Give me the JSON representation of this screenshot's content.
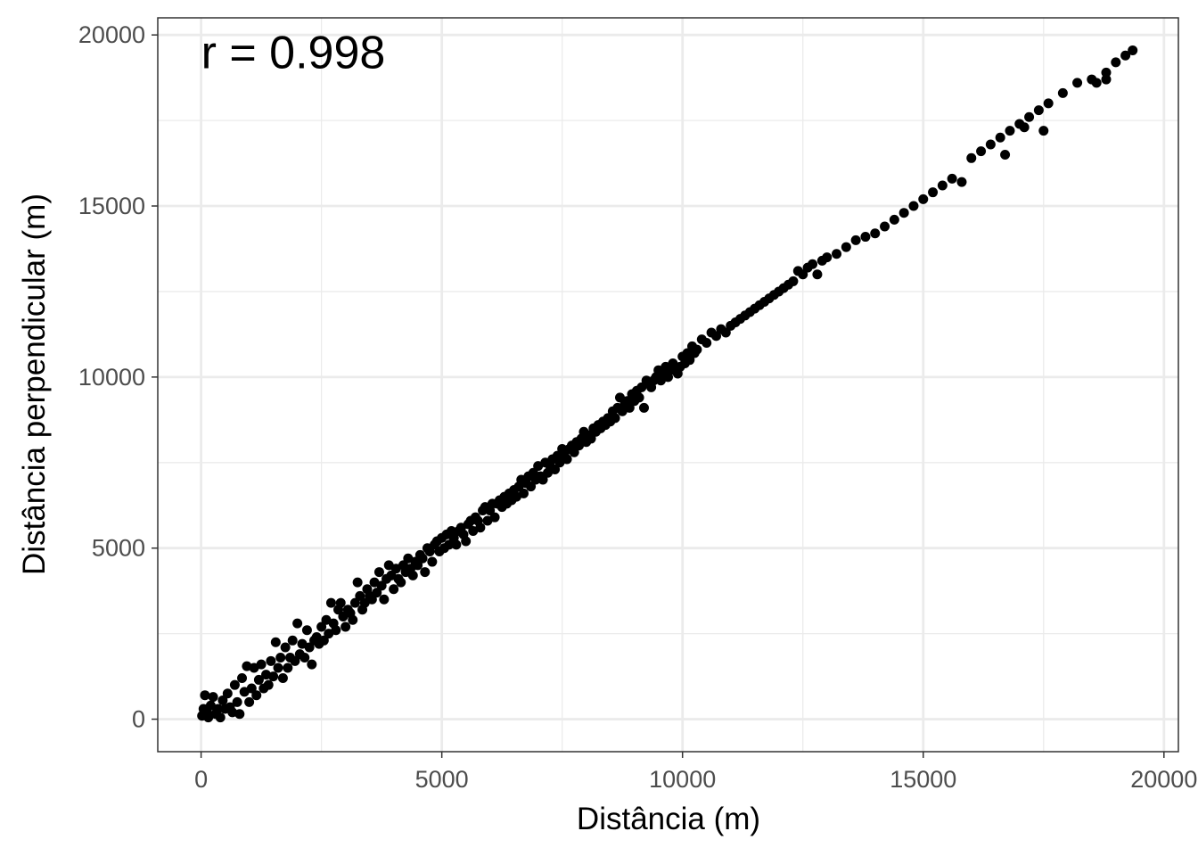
{
  "chart_data": {
    "type": "scatter",
    "title": "",
    "xlabel": "Distância (m)",
    "ylabel": "Distância perpendicular (m)",
    "xlim": [
      -900,
      20300
    ],
    "ylim": [
      -950,
      20500
    ],
    "x_ticks": [
      0,
      5000,
      10000,
      15000,
      20000
    ],
    "y_ticks": [
      0,
      5000,
      10000,
      15000,
      20000
    ],
    "x_tick_labels": [
      "0",
      "5000",
      "10000",
      "15000",
      "20000"
    ],
    "y_tick_labels": [
      "0",
      "5000",
      "10000",
      "15000",
      "20000"
    ],
    "grid": true,
    "annotation": {
      "text": "r = 0.998",
      "x": 0,
      "y": 19500
    },
    "colors": {
      "points": "#000000",
      "grid": "#ebebeb",
      "panel_border": "#333333"
    },
    "series": [
      {
        "points": [
          [
            20,
            100
          ],
          [
            50,
            300
          ],
          [
            80,
            700
          ],
          [
            120,
            200
          ],
          [
            150,
            50
          ],
          [
            200,
            400
          ],
          [
            250,
            650
          ],
          [
            300,
            150
          ],
          [
            350,
            300
          ],
          [
            400,
            50
          ],
          [
            450,
            550
          ],
          [
            500,
            300
          ],
          [
            550,
            750
          ],
          [
            600,
            350
          ],
          [
            650,
            200
          ],
          [
            700,
            1000
          ],
          [
            750,
            500
          ],
          [
            800,
            150
          ],
          [
            850,
            1200
          ],
          [
            900,
            800
          ],
          [
            950,
            1550
          ],
          [
            1000,
            500
          ],
          [
            1050,
            900
          ],
          [
            1100,
            1500
          ],
          [
            1150,
            700
          ],
          [
            1200,
            1150
          ],
          [
            1250,
            1600
          ],
          [
            1300,
            900
          ],
          [
            1350,
            1300
          ],
          [
            1400,
            1000
          ],
          [
            1450,
            1700
          ],
          [
            1500,
            1250
          ],
          [
            1550,
            2250
          ],
          [
            1600,
            1500
          ],
          [
            1650,
            1800
          ],
          [
            1700,
            1200
          ],
          [
            1750,
            2100
          ],
          [
            1800,
            1500
          ],
          [
            1850,
            1800
          ],
          [
            1900,
            2300
          ],
          [
            1950,
            1700
          ],
          [
            2000,
            2800
          ],
          [
            2050,
            1900
          ],
          [
            2100,
            2200
          ],
          [
            2150,
            1800
          ],
          [
            2200,
            2600
          ],
          [
            2250,
            2100
          ],
          [
            2300,
            1600
          ],
          [
            2350,
            2300
          ],
          [
            2400,
            2400
          ],
          [
            2450,
            2200
          ],
          [
            2500,
            2700
          ],
          [
            2550,
            2300
          ],
          [
            2600,
            2900
          ],
          [
            2650,
            2500
          ],
          [
            2700,
            3400
          ],
          [
            2750,
            2800
          ],
          [
            2800,
            2600
          ],
          [
            2850,
            3200
          ],
          [
            2900,
            3400
          ],
          [
            2950,
            3000
          ],
          [
            3000,
            2700
          ],
          [
            3050,
            3200
          ],
          [
            3100,
            3100
          ],
          [
            3150,
            2900
          ],
          [
            3200,
            3400
          ],
          [
            3250,
            4000
          ],
          [
            3300,
            3600
          ],
          [
            3350,
            3200
          ],
          [
            3400,
            3400
          ],
          [
            3450,
            3800
          ],
          [
            3500,
            3600
          ],
          [
            3550,
            3500
          ],
          [
            3600,
            4000
          ],
          [
            3650,
            3700
          ],
          [
            3700,
            4300
          ],
          [
            3750,
            3900
          ],
          [
            3800,
            3500
          ],
          [
            3850,
            4100
          ],
          [
            3900,
            4500
          ],
          [
            3950,
            4200
          ],
          [
            4000,
            3800
          ],
          [
            4050,
            4400
          ],
          [
            4100,
            4100
          ],
          [
            4150,
            4000
          ],
          [
            4200,
            4500
          ],
          [
            4250,
            4300
          ],
          [
            4300,
            4700
          ],
          [
            4350,
            4400
          ],
          [
            4400,
            4200
          ],
          [
            4450,
            4600
          ],
          [
            4500,
            4500
          ],
          [
            4550,
            4800
          ],
          [
            4600,
            4700
          ],
          [
            4650,
            4300
          ],
          [
            4700,
            5000
          ],
          [
            4750,
            4900
          ],
          [
            4800,
            4600
          ],
          [
            4850,
            5100
          ],
          [
            4900,
            5200
          ],
          [
            4950,
            4900
          ],
          [
            5000,
            5300
          ],
          [
            5050,
            5000
          ],
          [
            5100,
            5400
          ],
          [
            5150,
            5100
          ],
          [
            5200,
            5500
          ],
          [
            5250,
            5300
          ],
          [
            5300,
            5100
          ],
          [
            5350,
            5500
          ],
          [
            5400,
            5600
          ],
          [
            5450,
            5400
          ],
          [
            5500,
            5200
          ],
          [
            5550,
            5700
          ],
          [
            5600,
            5800
          ],
          [
            5650,
            5500
          ],
          [
            5700,
            5900
          ],
          [
            5750,
            5800
          ],
          [
            5800,
            5600
          ],
          [
            5850,
            6100
          ],
          [
            5900,
            6200
          ],
          [
            5950,
            5800
          ],
          [
            6000,
            6100
          ],
          [
            6050,
            6300
          ],
          [
            6100,
            5900
          ],
          [
            6150,
            6300
          ],
          [
            6200,
            6400
          ],
          [
            6250,
            6200
          ],
          [
            6300,
            6500
          ],
          [
            6350,
            6300
          ],
          [
            6400,
            6600
          ],
          [
            6450,
            6400
          ],
          [
            6500,
            6700
          ],
          [
            6550,
            6500
          ],
          [
            6600,
            6800
          ],
          [
            6650,
            7000
          ],
          [
            6700,
            6600
          ],
          [
            6750,
            6900
          ],
          [
            6800,
            7100
          ],
          [
            6850,
            6800
          ],
          [
            6900,
            7200
          ],
          [
            6950,
            7000
          ],
          [
            7000,
            7400
          ],
          [
            7050,
            7100
          ],
          [
            7100,
            7000
          ],
          [
            7150,
            7500
          ],
          [
            7200,
            7200
          ],
          [
            7250,
            7400
          ],
          [
            7300,
            7600
          ],
          [
            7350,
            7300
          ],
          [
            7400,
            7700
          ],
          [
            7450,
            7500
          ],
          [
            7500,
            7900
          ],
          [
            7550,
            7700
          ],
          [
            7600,
            7600
          ],
          [
            7650,
            7900
          ],
          [
            7700,
            8000
          ],
          [
            7750,
            7800
          ],
          [
            7800,
            8100
          ],
          [
            7850,
            8000
          ],
          [
            7900,
            8200
          ],
          [
            7950,
            8400
          ],
          [
            8000,
            8100
          ],
          [
            8050,
            8300
          ],
          [
            8100,
            8200
          ],
          [
            8150,
            8500
          ],
          [
            8200,
            8400
          ],
          [
            8250,
            8600
          ],
          [
            8300,
            8500
          ],
          [
            8350,
            8700
          ],
          [
            8400,
            8600
          ],
          [
            8450,
            8800
          ],
          [
            8500,
            8700
          ],
          [
            8550,
            9000
          ],
          [
            8600,
            8800
          ],
          [
            8650,
            9100
          ],
          [
            8700,
            9400
          ],
          [
            8750,
            9000
          ],
          [
            8800,
            9200
          ],
          [
            8850,
            9300
          ],
          [
            8900,
            9100
          ],
          [
            8950,
            9500
          ],
          [
            9000,
            9300
          ],
          [
            9050,
            9600
          ],
          [
            9100,
            9400
          ],
          [
            9150,
            9700
          ],
          [
            9200,
            9100
          ],
          [
            9250,
            9900
          ],
          [
            9300,
            9800
          ],
          [
            9350,
            9700
          ],
          [
            9400,
            9900
          ],
          [
            9450,
            10000
          ],
          [
            9500,
            10200
          ],
          [
            9550,
            9900
          ],
          [
            9600,
            10100
          ],
          [
            9650,
            10300
          ],
          [
            9700,
            10000
          ],
          [
            9750,
            10200
          ],
          [
            9800,
            10400
          ],
          [
            9850,
            10200
          ],
          [
            9900,
            10100
          ],
          [
            9950,
            10300
          ],
          [
            10000,
            10600
          ],
          [
            10050,
            10400
          ],
          [
            10100,
            10700
          ],
          [
            10150,
            10500
          ],
          [
            10200,
            10900
          ],
          [
            10250,
            10700
          ],
          [
            10300,
            10800
          ],
          [
            10400,
            11100
          ],
          [
            10500,
            11000
          ],
          [
            10600,
            11300
          ],
          [
            10700,
            11200
          ],
          [
            10800,
            11400
          ],
          [
            10900,
            11300
          ],
          [
            11000,
            11500
          ],
          [
            11100,
            11600
          ],
          [
            11200,
            11700
          ],
          [
            11300,
            11800
          ],
          [
            11400,
            11900
          ],
          [
            11500,
            12000
          ],
          [
            11600,
            12100
          ],
          [
            11700,
            12200
          ],
          [
            11800,
            12300
          ],
          [
            11900,
            12400
          ],
          [
            12000,
            12500
          ],
          [
            12100,
            12600
          ],
          [
            12200,
            12700
          ],
          [
            12300,
            12800
          ],
          [
            12400,
            13100
          ],
          [
            12500,
            13000
          ],
          [
            12600,
            13200
          ],
          [
            12700,
            13300
          ],
          [
            12800,
            13000
          ],
          [
            12900,
            13400
          ],
          [
            13000,
            13500
          ],
          [
            13200,
            13600
          ],
          [
            13400,
            13800
          ],
          [
            13600,
            14000
          ],
          [
            13800,
            14100
          ],
          [
            14000,
            14200
          ],
          [
            14200,
            14400
          ],
          [
            14400,
            14600
          ],
          [
            14600,
            14800
          ],
          [
            14800,
            15000
          ],
          [
            15000,
            15200
          ],
          [
            15200,
            15400
          ],
          [
            15400,
            15600
          ],
          [
            15600,
            15800
          ],
          [
            15800,
            15700
          ],
          [
            16000,
            16400
          ],
          [
            16200,
            16600
          ],
          [
            16400,
            16800
          ],
          [
            16600,
            17000
          ],
          [
            16800,
            17200
          ],
          [
            17000,
            17400
          ],
          [
            17200,
            17600
          ],
          [
            17400,
            17800
          ],
          [
            17600,
            18000
          ],
          [
            17900,
            18300
          ],
          [
            18200,
            18600
          ],
          [
            18500,
            18700
          ],
          [
            18800,
            18900
          ],
          [
            19000,
            19200
          ],
          [
            19200,
            19400
          ],
          [
            19350,
            19550
          ],
          [
            16700,
            16500
          ],
          [
            17100,
            17300
          ],
          [
            18600,
            18600
          ],
          [
            18800,
            18700
          ],
          [
            17500,
            17200
          ]
        ]
      }
    ]
  }
}
